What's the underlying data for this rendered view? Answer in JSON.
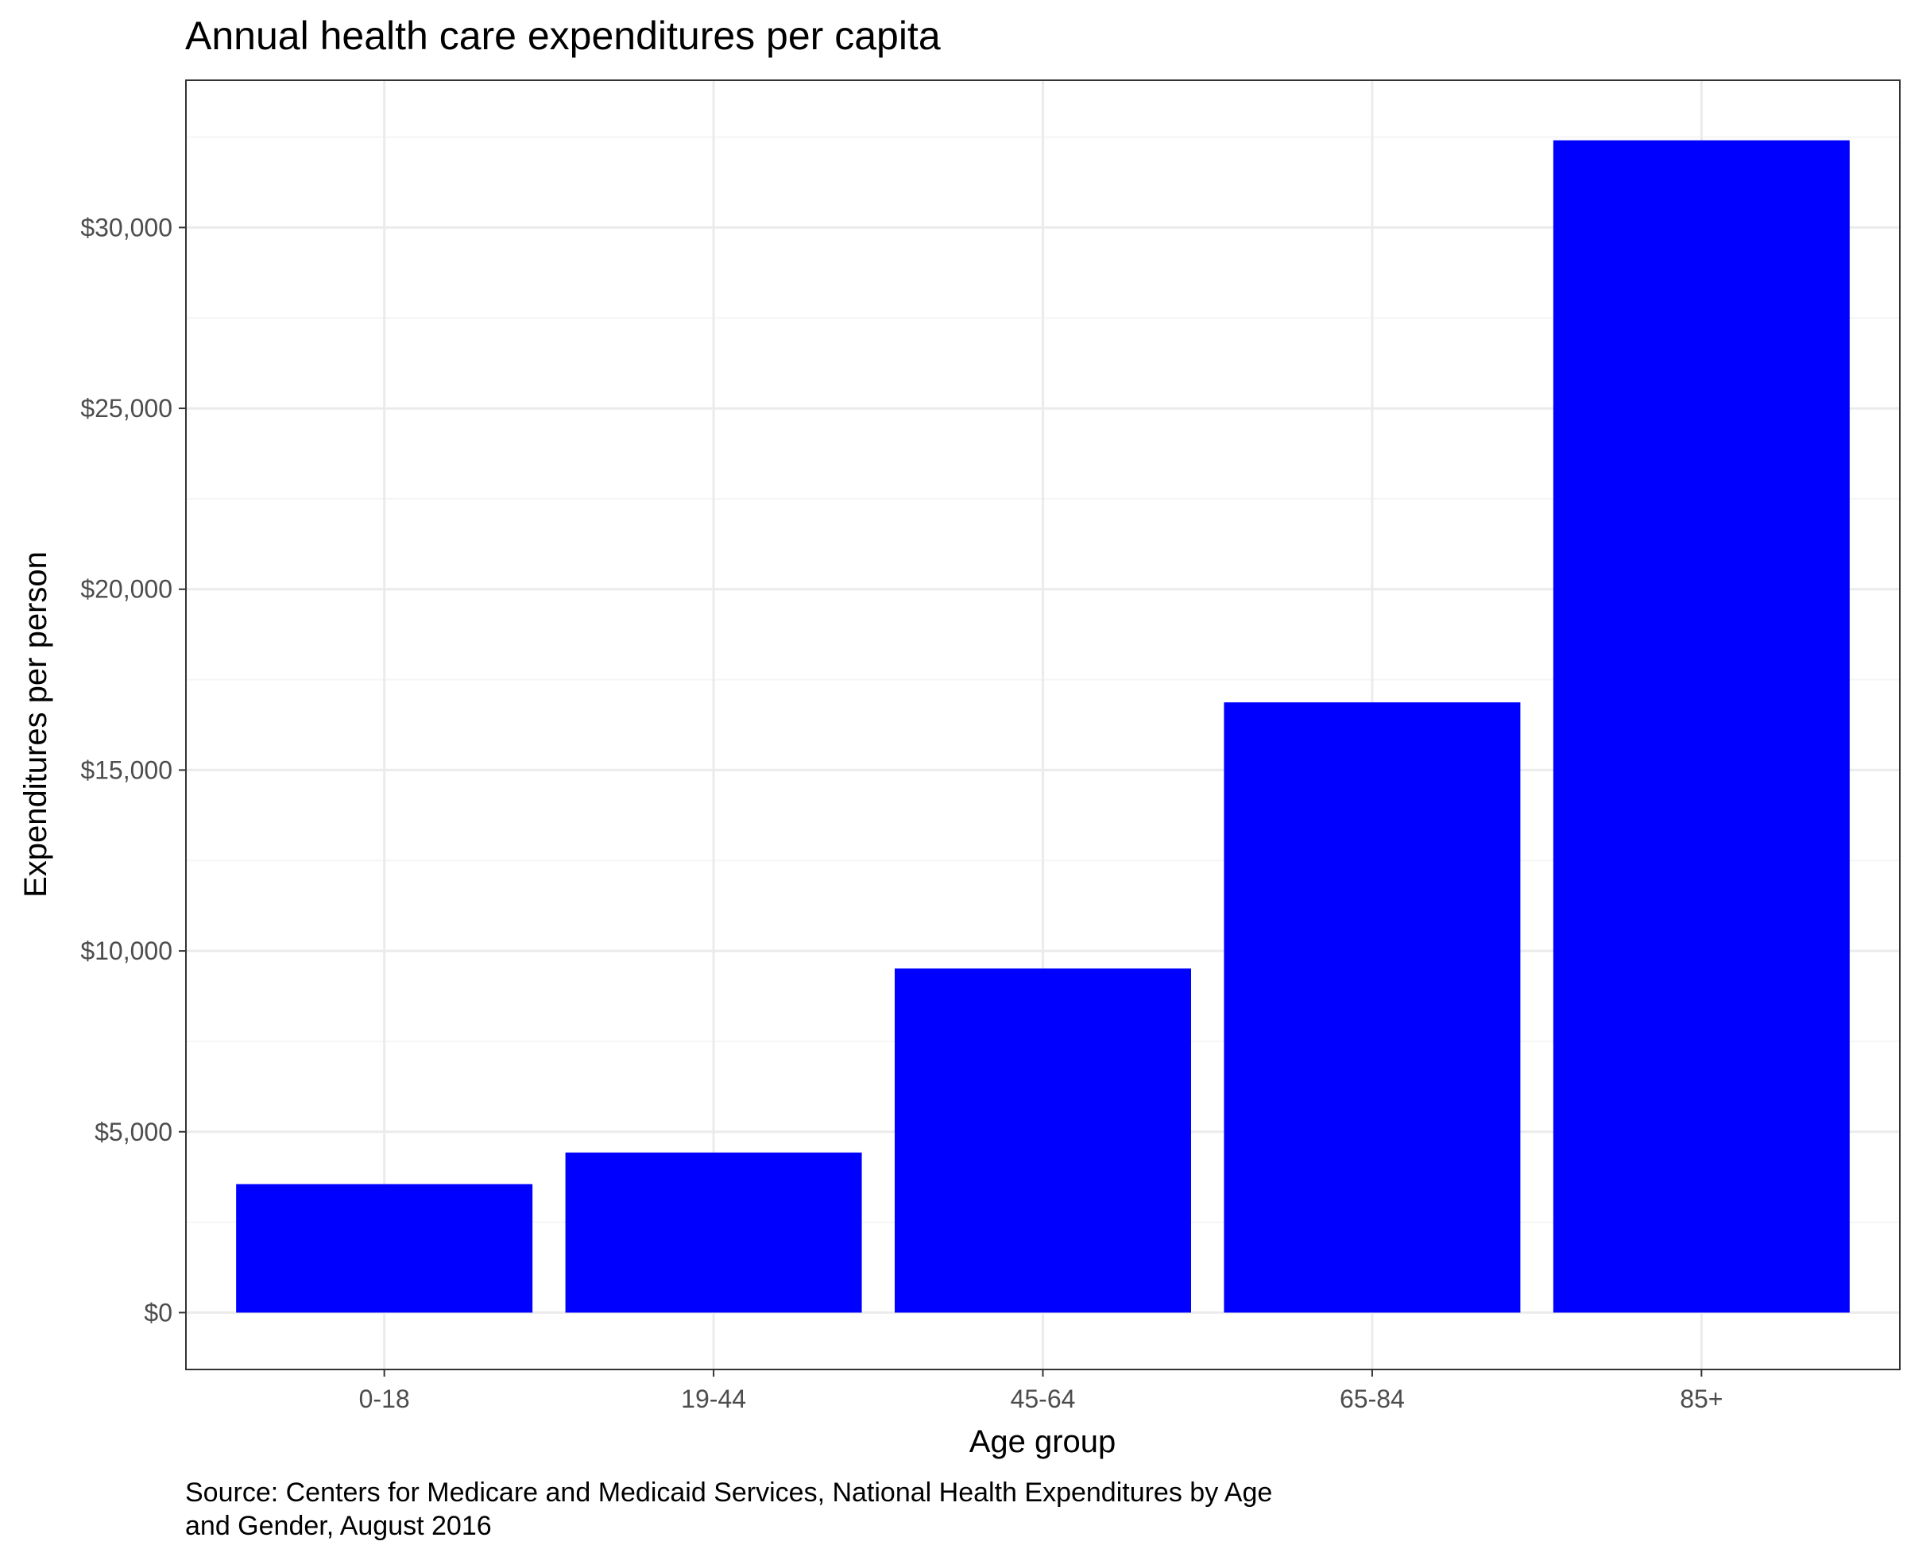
{
  "chart_data": {
    "type": "bar",
    "title": "Annual health care expenditures per capita",
    "xlabel": "Age group",
    "ylabel": "Expenditures per person",
    "caption_lines": [
      "Source: Centers for Medicare and Medicaid Services, National Health Expenditures by Age",
      "and Gender, August 2016"
    ],
    "categories": [
      "0-18",
      "19-44",
      "45-64",
      "65-84",
      "85+"
    ],
    "values": [
      3552,
      4426,
      9513,
      16872,
      32411
    ],
    "ylim": [
      -1550,
      34050
    ],
    "y_ticks": [
      0,
      5000,
      10000,
      15000,
      20000,
      25000,
      30000
    ],
    "y_tick_labels": [
      "$0",
      "$5,000",
      "$10,000",
      "$15,000",
      "$20,000",
      "$25,000",
      "$30,000"
    ],
    "y_minor_ticks": [
      2500,
      7500,
      12500,
      17500,
      22500,
      27500,
      32500
    ],
    "grid": true,
    "legend": "none",
    "colors": {
      "bar": "#0000ff",
      "panel_border": "#333333",
      "grid_major": "#ebebeb",
      "grid_minor": "#f5f5f5",
      "tick_text": "#4d4d4d"
    }
  }
}
